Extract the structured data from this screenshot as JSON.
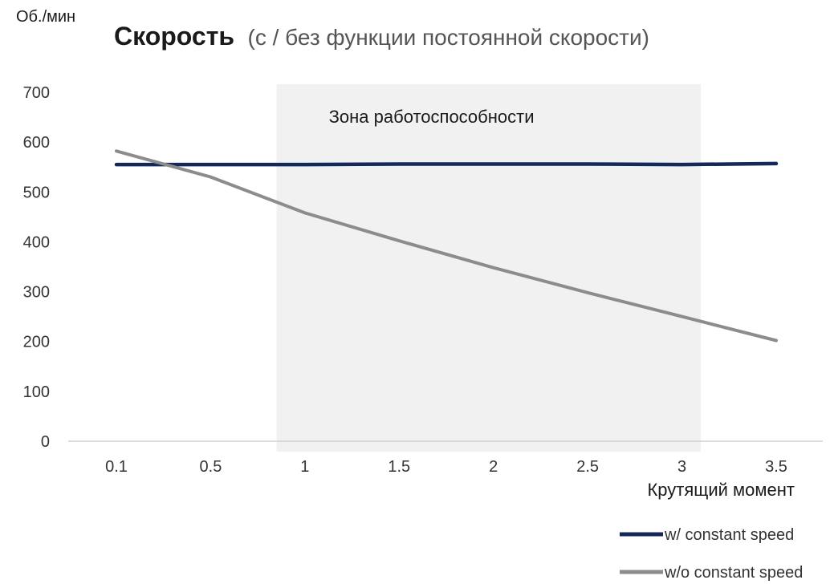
{
  "chart_data": {
    "type": "line",
    "title": "Скорость",
    "subtitle": "(с / без функции постоянной скорости)",
    "ylabel": "Об./мин",
    "xlabel": "Крутящий момент",
    "categories": [
      "0.1",
      "0.5",
      "1",
      "1.5",
      "2",
      "2.5",
      "3",
      "3.5"
    ],
    "y_ticks": [
      "0",
      "100",
      "200",
      "300",
      "400",
      "500",
      "600",
      "700"
    ],
    "ylim": [
      0,
      700
    ],
    "grid": false,
    "legend_position": "bottom-right",
    "annotation": {
      "text": "Зона работоспособности",
      "x_from": 0.85,
      "x_to": 3.1
    },
    "series": [
      {
        "name": "w/ constant speed",
        "color": "#14285a",
        "values": [
          555,
          555,
          555,
          556,
          556,
          556,
          555,
          557
        ]
      },
      {
        "name": "w/o constant speed",
        "color": "#8c8c8c",
        "values": [
          582,
          530,
          458,
          402,
          348,
          298,
          250,
          202
        ]
      }
    ]
  }
}
